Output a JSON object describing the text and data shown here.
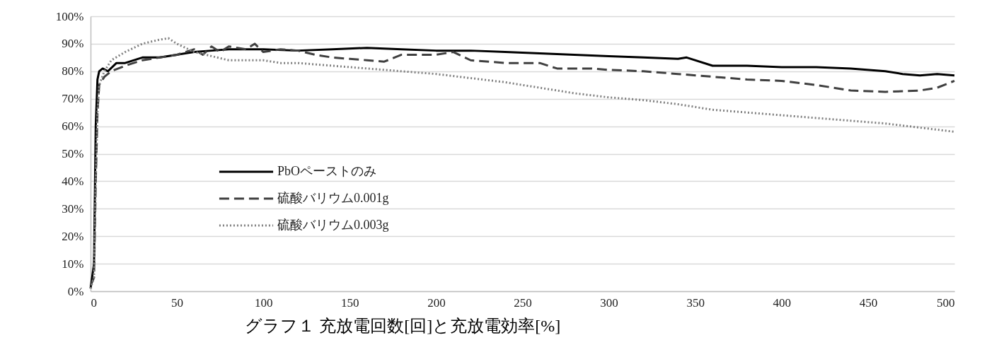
{
  "chart_data": {
    "type": "line",
    "title": "グラフ１ 充放電回数[回]と充放電効率[%]",
    "xlim": [
      0,
      500
    ],
    "xticks": [
      0,
      50,
      100,
      150,
      200,
      250,
      300,
      350,
      400,
      450,
      500
    ],
    "ylim": [
      0,
      100
    ],
    "yticks": [
      {
        "value": 0,
        "label": "0%"
      },
      {
        "value": 10,
        "label": "10%"
      },
      {
        "value": 20,
        "label": "20%"
      },
      {
        "value": 30,
        "label": "30%"
      },
      {
        "value": 40,
        "label": "40%"
      },
      {
        "value": 50,
        "label": "50%"
      },
      {
        "value": 60,
        "label": "60%"
      },
      {
        "value": 70,
        "label": "70%"
      },
      {
        "value": 80,
        "label": "80%"
      },
      {
        "value": 90,
        "label": "90%"
      },
      {
        "value": 100,
        "label": "100%"
      }
    ],
    "grid": "y",
    "legend": "left",
    "marker": "none",
    "series": [
      {
        "name": "PbOペーストのみ",
        "color": "#000000",
        "line_style": "solid",
        "x": [
          0,
          2,
          3,
          4,
          5,
          7,
          10,
          15,
          20,
          30,
          40,
          50,
          60,
          70,
          80,
          100,
          120,
          140,
          160,
          180,
          200,
          220,
          240,
          260,
          280,
          300,
          320,
          340,
          345,
          360,
          380,
          400,
          420,
          440,
          460,
          470,
          480,
          490,
          500
        ],
        "values": [
          1,
          10,
          60,
          77,
          80,
          81,
          80,
          83,
          83,
          85,
          85,
          86,
          87,
          87.5,
          88,
          88,
          87.5,
          88,
          88.5,
          88,
          87.5,
          87.5,
          87,
          86.5,
          86,
          85.5,
          85,
          84.5,
          85,
          82,
          82,
          81.5,
          81.5,
          81,
          80,
          79,
          78.5,
          79,
          78.5
        ]
      },
      {
        "name": "硫酸バリウム0.001g",
        "color": "#404040",
        "line_style": "dashed",
        "x": [
          0,
          2,
          3,
          4,
          5,
          8,
          12,
          20,
          30,
          40,
          50,
          60,
          65,
          70,
          75,
          80,
          90,
          95,
          100,
          110,
          120,
          130,
          140,
          150,
          160,
          170,
          180,
          200,
          210,
          220,
          240,
          260,
          270,
          290,
          300,
          320,
          340,
          360,
          380,
          400,
          420,
          440,
          460,
          480,
          490,
          500
        ],
        "values": [
          2,
          5,
          40,
          65,
          75,
          78,
          80,
          82,
          84,
          85,
          86,
          88,
          86,
          89,
          87,
          89,
          88,
          90,
          87,
          88,
          87.5,
          86,
          85,
          84.5,
          84,
          83.5,
          86,
          86,
          87,
          84,
          83,
          83,
          81,
          81,
          80.5,
          80,
          79,
          78,
          77,
          76.5,
          75,
          73,
          72.5,
          73,
          74,
          76.5
        ]
      },
      {
        "name": "硫酸バリウム0.003g",
        "color": "#808080",
        "line_style": "dotted",
        "x": [
          0,
          2,
          3,
          4,
          5,
          8,
          12,
          20,
          30,
          40,
          45,
          50,
          60,
          70,
          80,
          90,
          100,
          110,
          120,
          140,
          160,
          180,
          200,
          220,
          240,
          260,
          280,
          300,
          320,
          340,
          360,
          380,
          400,
          420,
          440,
          460,
          480,
          500
        ],
        "values": [
          1,
          5,
          40,
          65,
          75,
          80,
          84,
          87,
          90,
          91.5,
          92,
          90,
          87,
          85.5,
          84,
          84,
          84,
          83,
          83,
          82,
          81,
          80,
          79,
          77.5,
          76,
          74,
          72,
          70.5,
          69.5,
          68,
          66,
          65,
          64,
          63,
          62,
          61,
          59.5,
          58
        ]
      }
    ]
  }
}
